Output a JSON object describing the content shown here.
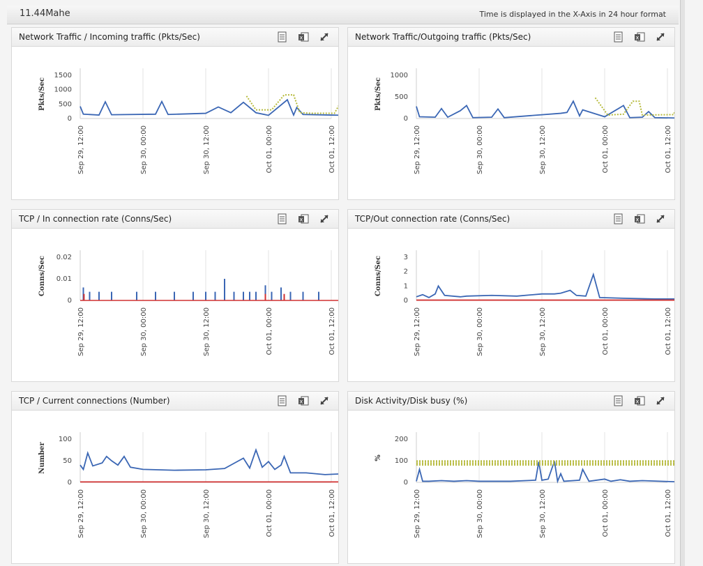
{
  "header": {
    "title": "11.44Mahe",
    "note": "Time is displayed in the X-Axis in 24 hour format"
  },
  "icons": {
    "pdf": "document-icon",
    "excel": "excel-icon",
    "expand": "expand-icon"
  },
  "colors": {
    "series": "#3a66b4",
    "threshold": "#b6ba3c",
    "baseline": "#d03030"
  },
  "x_ticks": [
    "Sep 29, 12:00",
    "Sep 30, 00:00",
    "Sep 30, 12:00",
    "Oct 01, 00:00",
    "Oct 01, 12:00"
  ],
  "panels": [
    {
      "title": "Network Traffic / Incoming traffic (Pkts/Sec)",
      "chart_data": {
        "type": "line",
        "ylabel": "Pkts/Sec",
        "yticks": [
          "1500",
          "1000",
          "500",
          "0"
        ],
        "ylim": [
          0,
          1500
        ],
        "series": [
          {
            "color": "#3a66b4",
            "values": [
              [
                0,
                420
              ],
              [
                0.05,
                150
              ],
              [
                0.3,
                120
              ],
              [
                0.4,
                580
              ],
              [
                0.5,
                130
              ],
              [
                1.2,
                150
              ],
              [
                1.3,
                590
              ],
              [
                1.4,
                140
              ],
              [
                2,
                180
              ],
              [
                2.2,
                400
              ],
              [
                2.4,
                200
              ],
              [
                2.6,
                560
              ],
              [
                2.8,
                200
              ],
              [
                3,
                110
              ],
              [
                3.3,
                650
              ],
              [
                3.4,
                120
              ],
              [
                3.45,
                380
              ],
              [
                3.55,
                140
              ],
              [
                4,
                120
              ],
              [
                4.2,
                110
              ]
            ]
          },
          {
            "color": "#b6ba3c",
            "dashed": true,
            "values": [
              [
                2.65,
                780
              ],
              [
                2.8,
                300
              ],
              [
                3.05,
                300
              ],
              [
                3.15,
                560
              ],
              [
                3.25,
                820
              ],
              [
                3.4,
                820
              ],
              [
                3.5,
                200
              ],
              [
                3.7,
                180
              ],
              [
                4.05,
                180
              ],
              [
                4.12,
                450
              ],
              [
                4.18,
                700
              ]
            ]
          }
        ]
      }
    },
    {
      "title": "Network Traffic/Outgoing traffic (Pkts/Sec)",
      "chart_data": {
        "type": "line",
        "ylabel": "Pkts/Sec",
        "yticks": [
          "1000",
          "500",
          "0"
        ],
        "ylim": [
          0,
          1000
        ],
        "series": [
          {
            "color": "#3a66b4",
            "values": [
              [
                0,
                280
              ],
              [
                0.05,
                40
              ],
              [
                0.3,
                30
              ],
              [
                0.4,
                230
              ],
              [
                0.5,
                30
              ],
              [
                0.7,
                180
              ],
              [
                0.8,
                300
              ],
              [
                0.9,
                20
              ],
              [
                1.2,
                30
              ],
              [
                1.3,
                220
              ],
              [
                1.4,
                20
              ],
              [
                2.3,
                120
              ],
              [
                2.4,
                140
              ],
              [
                2.5,
                400
              ],
              [
                2.6,
                60
              ],
              [
                2.65,
                200
              ],
              [
                3,
                40
              ],
              [
                3.3,
                300
              ],
              [
                3.4,
                20
              ],
              [
                3.6,
                30
              ],
              [
                3.7,
                160
              ],
              [
                3.8,
                20
              ],
              [
                4.2,
                10
              ]
            ]
          },
          {
            "color": "#b6ba3c",
            "dashed": true,
            "values": [
              [
                2.85,
                480
              ],
              [
                3.05,
                80
              ],
              [
                3.3,
                100
              ],
              [
                3.45,
                400
              ],
              [
                3.55,
                400
              ],
              [
                3.6,
                80
              ],
              [
                4.1,
                90
              ],
              [
                4.15,
                300
              ]
            ]
          }
        ]
      }
    },
    {
      "title": "TCP / In connection rate (Conns/Sec)",
      "chart_data": {
        "type": "bar",
        "ylabel": "Conns/Sec",
        "yticks": [
          "0.02",
          "0.01",
          "0"
        ],
        "ylim": [
          0,
          0.02
        ],
        "series": [
          {
            "color": "#3a66b4",
            "values": [
              [
                0.05,
                0.006
              ],
              [
                0.15,
                0.004
              ],
              [
                0.3,
                0.004
              ],
              [
                0.5,
                0.004
              ],
              [
                0.9,
                0.004
              ],
              [
                1.2,
                0.004
              ],
              [
                1.5,
                0.004
              ],
              [
                1.8,
                0.004
              ],
              [
                2.0,
                0.004
              ],
              [
                2.15,
                0.004
              ],
              [
                2.3,
                0.01
              ],
              [
                2.45,
                0.004
              ],
              [
                2.6,
                0.004
              ],
              [
                2.7,
                0.004
              ],
              [
                2.8,
                0.004
              ],
              [
                2.95,
                0.007
              ],
              [
                3.05,
                0.004
              ],
              [
                3.2,
                0.006
              ],
              [
                3.35,
                0.004
              ],
              [
                3.55,
                0.004
              ],
              [
                3.8,
                0.004
              ]
            ]
          },
          {
            "color": "#d03030",
            "values": [
              [
                0.06,
                0.003
              ],
              [
                2.95,
                0.003
              ],
              [
                3.25,
                0.003
              ]
            ]
          }
        ]
      }
    },
    {
      "title": "TCP/Out connection rate (Conns/Sec)",
      "chart_data": {
        "type": "line",
        "ylabel": "Conns/Sec",
        "yticks": [
          "3",
          "2",
          "1",
          "0"
        ],
        "ylim": [
          0,
          3
        ],
        "series": [
          {
            "color": "#3a66b4",
            "values": [
              [
                0,
                0.25
              ],
              [
                0.1,
                0.4
              ],
              [
                0.2,
                0.2
              ],
              [
                0.3,
                0.45
              ],
              [
                0.35,
                1.0
              ],
              [
                0.45,
                0.35
              ],
              [
                0.7,
                0.25
              ],
              [
                0.8,
                0.3
              ],
              [
                1.2,
                0.35
              ],
              [
                1.6,
                0.3
              ],
              [
                2,
                0.45
              ],
              [
                2.2,
                0.45
              ],
              [
                2.3,
                0.5
              ],
              [
                2.45,
                0.7
              ],
              [
                2.55,
                0.35
              ],
              [
                2.7,
                0.3
              ],
              [
                2.82,
                1.8
              ],
              [
                2.92,
                0.2
              ],
              [
                3.3,
                0.15
              ],
              [
                3.8,
                0.1
              ],
              [
                4.2,
                0.1
              ]
            ]
          },
          {
            "color": "#d03030",
            "values": [
              [
                0,
                0.02
              ],
              [
                4.2,
                0.02
              ]
            ]
          }
        ]
      }
    },
    {
      "title": "TCP / Current connections (Number)",
      "chart_data": {
        "type": "line",
        "ylabel": "Number",
        "yticks": [
          "100",
          "50",
          "0"
        ],
        "ylim": [
          0,
          100
        ],
        "series": [
          {
            "color": "#3a66b4",
            "values": [
              [
                0,
                40
              ],
              [
                0.05,
                30
              ],
              [
                0.12,
                68
              ],
              [
                0.2,
                38
              ],
              [
                0.35,
                45
              ],
              [
                0.42,
                60
              ],
              [
                0.5,
                50
              ],
              [
                0.6,
                40
              ],
              [
                0.7,
                60
              ],
              [
                0.8,
                35
              ],
              [
                1,
                30
              ],
              [
                1.5,
                28
              ],
              [
                2,
                29
              ],
              [
                2.3,
                32
              ],
              [
                2.5,
                48
              ],
              [
                2.6,
                56
              ],
              [
                2.7,
                33
              ],
              [
                2.8,
                75
              ],
              [
                2.9,
                35
              ],
              [
                3.0,
                48
              ],
              [
                3.1,
                30
              ],
              [
                3.2,
                40
              ],
              [
                3.25,
                60
              ],
              [
                3.35,
                22
              ],
              [
                3.6,
                22
              ],
              [
                3.9,
                18
              ],
              [
                4.2,
                20
              ]
            ]
          },
          {
            "color": "#d03030",
            "values": [
              [
                0,
                1
              ],
              [
                4.2,
                1
              ]
            ]
          }
        ]
      }
    },
    {
      "title": "Disk Activity/Disk busy (%)",
      "chart_data": {
        "type": "line",
        "ylabel": "%",
        "yticks": [
          "200",
          "100",
          "0"
        ],
        "ylim": [
          0,
          200
        ],
        "series": [
          {
            "color": "#3a66b4",
            "values": [
              [
                0,
                5
              ],
              [
                0.05,
                60
              ],
              [
                0.1,
                5
              ],
              [
                0.2,
                5
              ],
              [
                0.4,
                8
              ],
              [
                0.6,
                5
              ],
              [
                0.8,
                8
              ],
              [
                1.0,
                5
              ],
              [
                1.5,
                5
              ],
              [
                1.9,
                10
              ],
              [
                1.95,
                95
              ],
              [
                2.0,
                10
              ],
              [
                2.1,
                15
              ],
              [
                2.2,
                98
              ],
              [
                2.25,
                5
              ],
              [
                2.3,
                40
              ],
              [
                2.35,
                5
              ],
              [
                2.6,
                10
              ],
              [
                2.65,
                60
              ],
              [
                2.75,
                5
              ],
              [
                3.0,
                15
              ],
              [
                3.1,
                5
              ],
              [
                3.25,
                12
              ],
              [
                3.4,
                5
              ],
              [
                3.6,
                8
              ],
              [
                4.2,
                2
              ]
            ]
          },
          {
            "color": "#b6ba3c",
            "band": true,
            "values": [
              [
                0,
                80
              ],
              [
                4.2,
                100
              ]
            ]
          }
        ]
      }
    }
  ]
}
